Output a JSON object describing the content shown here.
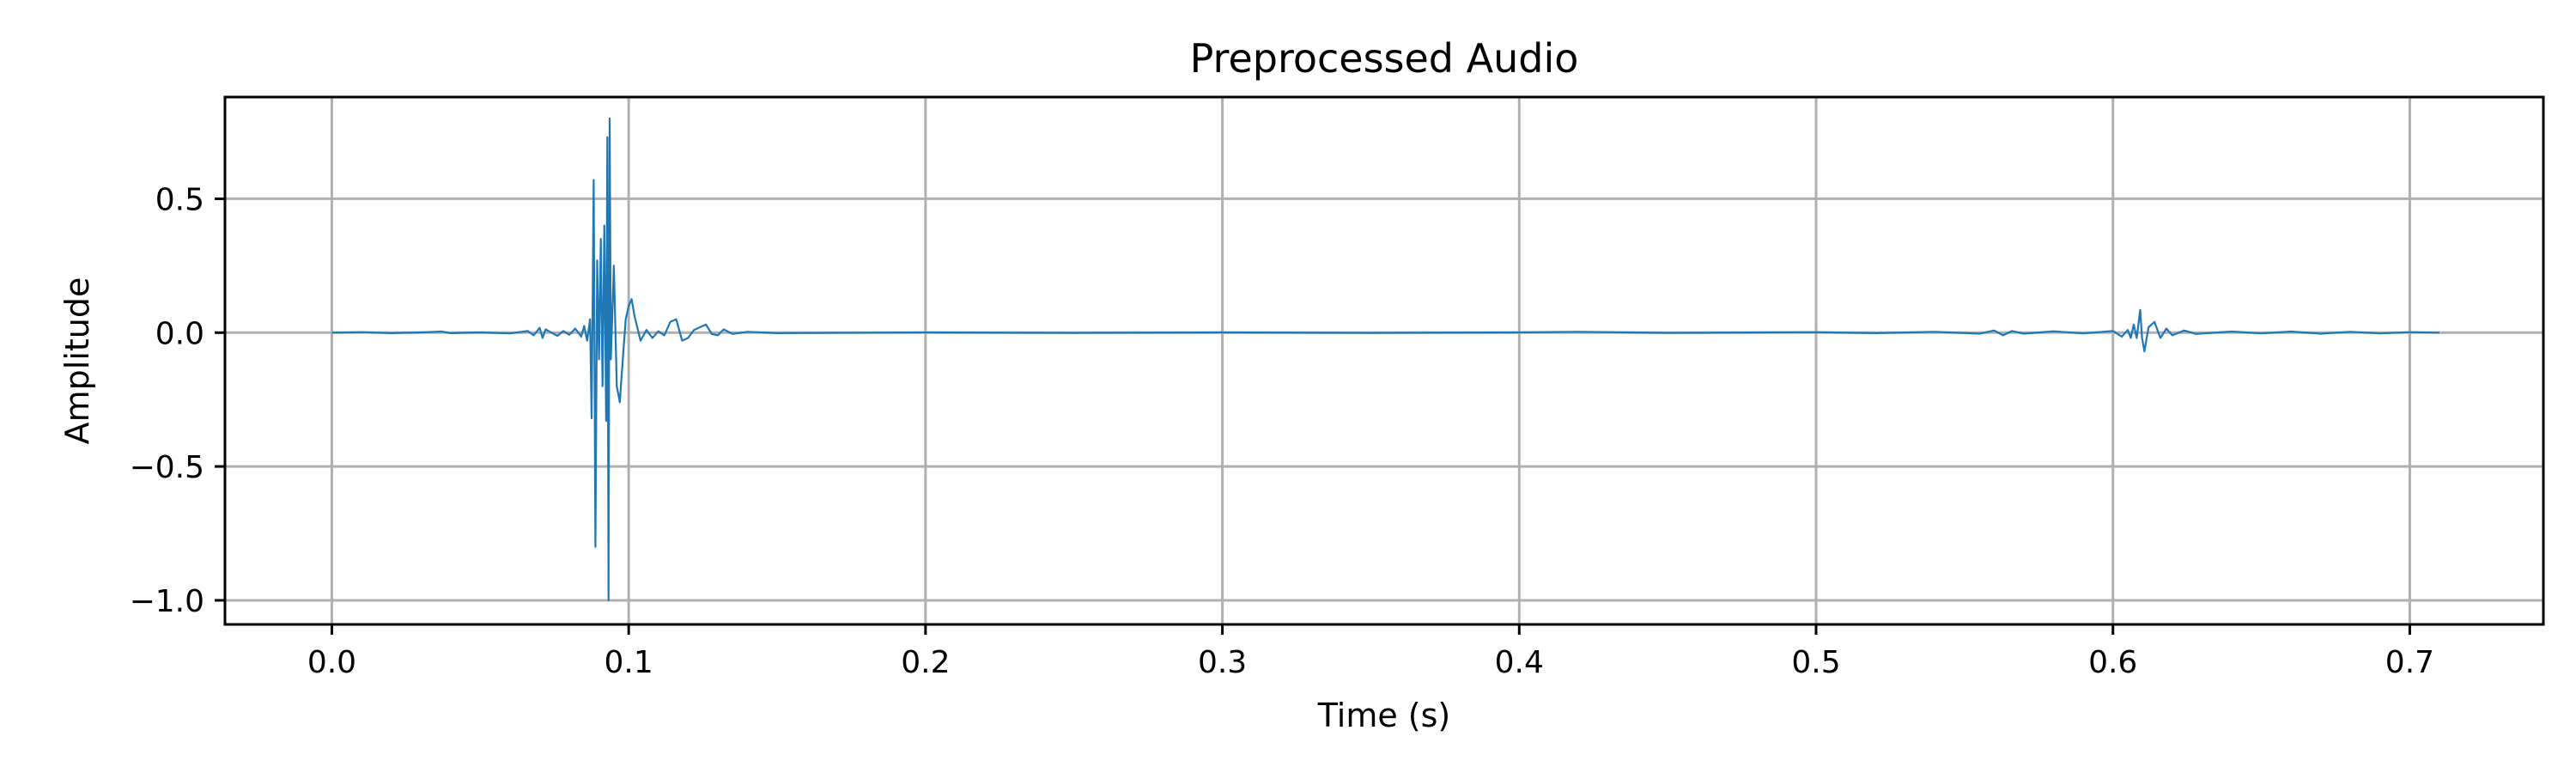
{
  "chart_data": {
    "type": "line",
    "title": "Preprocessed Audio",
    "xlabel": "Time (s)",
    "ylabel": "Amplitude",
    "xlim": [
      -0.036,
      0.745
    ],
    "ylim": [
      -1.09,
      0.88
    ],
    "x_ticks": [
      0.0,
      0.1,
      0.2,
      0.3,
      0.4,
      0.5,
      0.6,
      0.7
    ],
    "x_tick_labels": [
      "0.0",
      "0.1",
      "0.2",
      "0.3",
      "0.4",
      "0.5",
      "0.6",
      "0.7"
    ],
    "y_ticks": [
      0.5,
      0.0,
      -0.5,
      -1.0
    ],
    "y_tick_labels": [
      "0.5",
      "0.0",
      "−0.5",
      "−1.0"
    ],
    "grid": true,
    "series": [
      {
        "color": "#1f77b4",
        "points": [
          [
            0.0,
            0.0
          ],
          [
            0.01,
            0.002
          ],
          [
            0.02,
            -0.002
          ],
          [
            0.03,
            0.001
          ],
          [
            0.037,
            0.004
          ],
          [
            0.04,
            -0.002
          ],
          [
            0.05,
            0.001
          ],
          [
            0.06,
            -0.003
          ],
          [
            0.066,
            0.006
          ],
          [
            0.068,
            -0.01
          ],
          [
            0.07,
            0.018
          ],
          [
            0.071,
            -0.02
          ],
          [
            0.072,
            0.012
          ],
          [
            0.074,
            0.0
          ],
          [
            0.076,
            -0.012
          ],
          [
            0.078,
            0.006
          ],
          [
            0.08,
            -0.008
          ],
          [
            0.082,
            0.015
          ],
          [
            0.084,
            -0.015
          ],
          [
            0.085,
            0.025
          ],
          [
            0.086,
            -0.03
          ],
          [
            0.087,
            0.05
          ],
          [
            0.0875,
            -0.32
          ],
          [
            0.0882,
            0.57
          ],
          [
            0.0888,
            -0.8
          ],
          [
            0.0894,
            0.27
          ],
          [
            0.09,
            -0.1
          ],
          [
            0.0906,
            0.35
          ],
          [
            0.0912,
            -0.2
          ],
          [
            0.0918,
            0.4
          ],
          [
            0.0924,
            -0.33
          ],
          [
            0.0928,
            0.73
          ],
          [
            0.0932,
            -1.0
          ],
          [
            0.0936,
            0.8
          ],
          [
            0.094,
            -0.1
          ],
          [
            0.095,
            0.25
          ],
          [
            0.096,
            -0.2
          ],
          [
            0.097,
            -0.26
          ],
          [
            0.098,
            -0.1
          ],
          [
            0.099,
            0.05
          ],
          [
            0.1,
            0.1
          ],
          [
            0.101,
            0.125
          ],
          [
            0.102,
            0.06
          ],
          [
            0.104,
            -0.03
          ],
          [
            0.106,
            0.01
          ],
          [
            0.108,
            -0.02
          ],
          [
            0.11,
            0.005
          ],
          [
            0.112,
            -0.01
          ],
          [
            0.114,
            0.04
          ],
          [
            0.116,
            0.05
          ],
          [
            0.118,
            -0.03
          ],
          [
            0.12,
            -0.02
          ],
          [
            0.122,
            0.01
          ],
          [
            0.124,
            0.02
          ],
          [
            0.126,
            0.03
          ],
          [
            0.128,
            -0.005
          ],
          [
            0.13,
            -0.01
          ],
          [
            0.132,
            0.012
          ],
          [
            0.135,
            -0.005
          ],
          [
            0.14,
            0.003
          ],
          [
            0.15,
            -0.002
          ],
          [
            0.2,
            0.001
          ],
          [
            0.25,
            -0.001
          ],
          [
            0.3,
            0.001
          ],
          [
            0.35,
            -0.001
          ],
          [
            0.4,
            0.001
          ],
          [
            0.42,
            0.003
          ],
          [
            0.45,
            -0.001
          ],
          [
            0.5,
            0.002
          ],
          [
            0.52,
            -0.002
          ],
          [
            0.54,
            0.003
          ],
          [
            0.555,
            -0.004
          ],
          [
            0.56,
            0.008
          ],
          [
            0.563,
            -0.01
          ],
          [
            0.566,
            0.006
          ],
          [
            0.57,
            -0.004
          ],
          [
            0.58,
            0.005
          ],
          [
            0.59,
            -0.003
          ],
          [
            0.6,
            0.006
          ],
          [
            0.603,
            -0.015
          ],
          [
            0.605,
            0.01
          ],
          [
            0.606,
            -0.02
          ],
          [
            0.607,
            0.03
          ],
          [
            0.608,
            -0.02
          ],
          [
            0.6092,
            0.085
          ],
          [
            0.6098,
            -0.02
          ],
          [
            0.6106,
            -0.07
          ],
          [
            0.612,
            0.02
          ],
          [
            0.614,
            0.04
          ],
          [
            0.616,
            -0.02
          ],
          [
            0.618,
            0.015
          ],
          [
            0.62,
            -0.01
          ],
          [
            0.624,
            0.008
          ],
          [
            0.628,
            -0.005
          ],
          [
            0.64,
            0.004
          ],
          [
            0.65,
            -0.003
          ],
          [
            0.66,
            0.004
          ],
          [
            0.67,
            -0.004
          ],
          [
            0.68,
            0.003
          ],
          [
            0.69,
            -0.003
          ],
          [
            0.7,
            0.002
          ],
          [
            0.71,
            0.0
          ]
        ]
      }
    ]
  }
}
